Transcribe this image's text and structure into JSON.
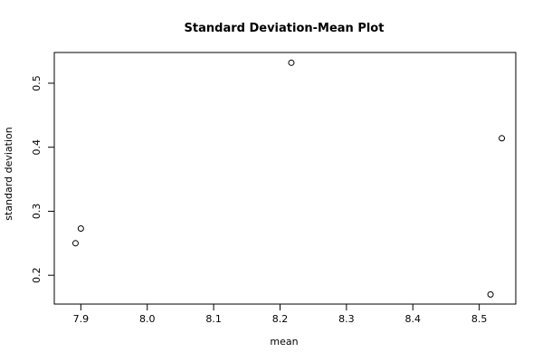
{
  "chart_data": {
    "type": "scatter",
    "title": "Standard Deviation-Mean Plot",
    "xlabel": "mean",
    "ylabel": "standard deviation",
    "xlim": [
      7.86,
      8.555
    ],
    "ylim": [
      0.155,
      0.548
    ],
    "xticks": [
      7.9,
      8.0,
      8.1,
      8.2,
      8.3,
      8.4,
      8.5
    ],
    "xtick_labels": [
      "7.9",
      "8.0",
      "8.1",
      "8.2",
      "8.3",
      "8.4",
      "8.5"
    ],
    "yticks": [
      0.2,
      0.3,
      0.4,
      0.5
    ],
    "ytick_labels": [
      "0.2",
      "0.3",
      "0.4",
      "0.5"
    ],
    "grid": false,
    "points": [
      {
        "x": 7.892,
        "y": 0.25
      },
      {
        "x": 7.9,
        "y": 0.273
      },
      {
        "x": 8.217,
        "y": 0.532
      },
      {
        "x": 8.517,
        "y": 0.17
      },
      {
        "x": 8.534,
        "y": 0.414
      }
    ]
  }
}
